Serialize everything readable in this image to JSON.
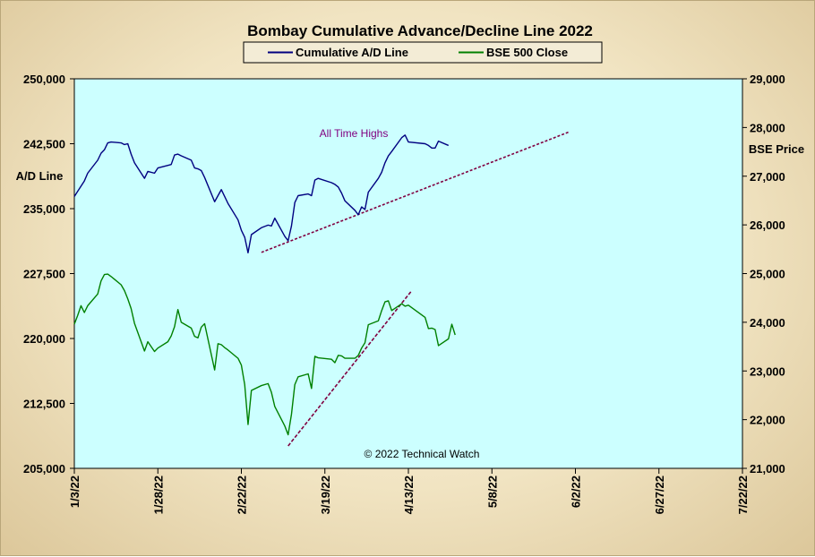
{
  "chart_data": {
    "type": "line",
    "title": "Bombay Cumulative Advance/Decline Line 2022",
    "left_axis": {
      "label": "A/D Line",
      "ylim": [
        205000,
        250000
      ],
      "ticks": [
        "205,000",
        "212,500",
        "220,000",
        "227,500",
        "235,000",
        "242,500",
        "250,000"
      ]
    },
    "right_axis": {
      "label": "BSE Price",
      "ylim": [
        21000,
        29000
      ],
      "ticks": [
        "21,000",
        "22,000",
        "23,000",
        "24,000",
        "25,000",
        "26,000",
        "27,000",
        "28,000",
        "29,000"
      ]
    },
    "x_ticks": [
      "1/3/22",
      "1/28/22",
      "2/22/22",
      "3/19/22",
      "4/13/22",
      "5/8/22",
      "6/2/22",
      "6/27/22",
      "7/22/22"
    ],
    "xlim": [
      "2022-01-03",
      "2022-07-22"
    ],
    "grid": false,
    "legend": "top-center",
    "plot_background": "#ccffff",
    "series": [
      {
        "name": "Cumulative A/D Line",
        "axis": "left",
        "color": "#000080",
        "points": [
          [
            "2022-01-03",
            236400
          ],
          [
            "2022-01-04",
            237000
          ],
          [
            "2022-01-05",
            237600
          ],
          [
            "2022-01-06",
            238200
          ],
          [
            "2022-01-07",
            239100
          ],
          [
            "2022-01-10",
            240600
          ],
          [
            "2022-01-11",
            241400
          ],
          [
            "2022-01-12",
            241800
          ],
          [
            "2022-01-13",
            242600
          ],
          [
            "2022-01-14",
            242700
          ],
          [
            "2022-01-17",
            242600
          ],
          [
            "2022-01-18",
            242400
          ],
          [
            "2022-01-19",
            242500
          ],
          [
            "2022-01-20",
            241300
          ],
          [
            "2022-01-21",
            240300
          ],
          [
            "2022-01-24",
            238500
          ],
          [
            "2022-01-25",
            239300
          ],
          [
            "2022-01-27",
            239100
          ],
          [
            "2022-01-28",
            239700
          ],
          [
            "2022-01-31",
            240000
          ],
          [
            "2022-02-01",
            240100
          ],
          [
            "2022-02-02",
            241200
          ],
          [
            "2022-02-03",
            241300
          ],
          [
            "2022-02-04",
            241100
          ],
          [
            "2022-02-07",
            240600
          ],
          [
            "2022-02-08",
            239700
          ],
          [
            "2022-02-09",
            239600
          ],
          [
            "2022-02-10",
            239400
          ],
          [
            "2022-02-11",
            238600
          ],
          [
            "2022-02-14",
            235800
          ],
          [
            "2022-02-15",
            236500
          ],
          [
            "2022-02-16",
            237200
          ],
          [
            "2022-02-17",
            236400
          ],
          [
            "2022-02-18",
            235600
          ],
          [
            "2022-02-21",
            233700
          ],
          [
            "2022-02-22",
            232500
          ],
          [
            "2022-02-23",
            231700
          ],
          [
            "2022-02-24",
            229900
          ],
          [
            "2022-02-25",
            232000
          ],
          [
            "2022-02-28",
            232800
          ],
          [
            "2022-03-02",
            233100
          ],
          [
            "2022-03-03",
            233000
          ],
          [
            "2022-03-04",
            233900
          ],
          [
            "2022-03-07",
            231800
          ],
          [
            "2022-03-08",
            231300
          ],
          [
            "2022-03-09",
            233000
          ],
          [
            "2022-03-10",
            235700
          ],
          [
            "2022-03-11",
            236500
          ],
          [
            "2022-03-14",
            236700
          ],
          [
            "2022-03-15",
            236500
          ],
          [
            "2022-03-16",
            238300
          ],
          [
            "2022-03-17",
            238500
          ],
          [
            "2022-03-21",
            238000
          ],
          [
            "2022-03-22",
            237800
          ],
          [
            "2022-03-23",
            237500
          ],
          [
            "2022-03-24",
            236800
          ],
          [
            "2022-03-25",
            235900
          ],
          [
            "2022-03-28",
            234800
          ],
          [
            "2022-03-29",
            234300
          ],
          [
            "2022-03-30",
            235200
          ],
          [
            "2022-03-31",
            234900
          ],
          [
            "2022-04-01",
            236900
          ],
          [
            "2022-04-04",
            238500
          ],
          [
            "2022-04-05",
            239200
          ],
          [
            "2022-04-06",
            240300
          ],
          [
            "2022-04-07",
            241100
          ],
          [
            "2022-04-08",
            241600
          ],
          [
            "2022-04-11",
            243200
          ],
          [
            "2022-04-12",
            243500
          ],
          [
            "2022-04-13",
            242700
          ],
          [
            "2022-04-18",
            242500
          ],
          [
            "2022-04-19",
            242300
          ],
          [
            "2022-04-20",
            242000
          ],
          [
            "2022-04-21",
            242000
          ],
          [
            "2022-04-22",
            242800
          ],
          [
            "2022-04-25",
            242300
          ]
        ]
      },
      {
        "name": "BSE 500 Close",
        "axis": "right",
        "color": "#008000",
        "points": [
          [
            "2022-01-03",
            23960
          ],
          [
            "2022-01-04",
            24140
          ],
          [
            "2022-01-05",
            24340
          ],
          [
            "2022-01-06",
            24200
          ],
          [
            "2022-01-07",
            24340
          ],
          [
            "2022-01-10",
            24580
          ],
          [
            "2022-01-11",
            24850
          ],
          [
            "2022-01-12",
            24980
          ],
          [
            "2022-01-13",
            24990
          ],
          [
            "2022-01-14",
            24940
          ],
          [
            "2022-01-17",
            24770
          ],
          [
            "2022-01-18",
            24650
          ],
          [
            "2022-01-19",
            24480
          ],
          [
            "2022-01-20",
            24280
          ],
          [
            "2022-01-21",
            23980
          ],
          [
            "2022-01-24",
            23410
          ],
          [
            "2022-01-25",
            23600
          ],
          [
            "2022-01-27",
            23400
          ],
          [
            "2022-01-28",
            23470
          ],
          [
            "2022-01-31",
            23600
          ],
          [
            "2022-02-01",
            23720
          ],
          [
            "2022-02-02",
            23910
          ],
          [
            "2022-02-03",
            24260
          ],
          [
            "2022-02-04",
            24000
          ],
          [
            "2022-02-07",
            23880
          ],
          [
            "2022-02-08",
            23710
          ],
          [
            "2022-02-09",
            23680
          ],
          [
            "2022-02-10",
            23900
          ],
          [
            "2022-02-11",
            23970
          ],
          [
            "2022-02-14",
            23020
          ],
          [
            "2022-02-15",
            23560
          ],
          [
            "2022-02-16",
            23540
          ],
          [
            "2022-02-17",
            23480
          ],
          [
            "2022-02-18",
            23430
          ],
          [
            "2022-02-21",
            23260
          ],
          [
            "2022-02-22",
            23120
          ],
          [
            "2022-02-23",
            22720
          ],
          [
            "2022-02-24",
            21900
          ],
          [
            "2022-02-25",
            22600
          ],
          [
            "2022-02-28",
            22700
          ],
          [
            "2022-03-02",
            22740
          ],
          [
            "2022-03-03",
            22560
          ],
          [
            "2022-03-04",
            22270
          ],
          [
            "2022-03-07",
            21870
          ],
          [
            "2022-03-08",
            21690
          ],
          [
            "2022-03-09",
            22110
          ],
          [
            "2022-03-10",
            22720
          ],
          [
            "2022-03-11",
            22880
          ],
          [
            "2022-03-14",
            22940
          ],
          [
            "2022-03-15",
            22640
          ],
          [
            "2022-03-16",
            23300
          ],
          [
            "2022-03-17",
            23270
          ],
          [
            "2022-03-21",
            23240
          ],
          [
            "2022-03-22",
            23170
          ],
          [
            "2022-03-23",
            23320
          ],
          [
            "2022-03-24",
            23310
          ],
          [
            "2022-03-25",
            23260
          ],
          [
            "2022-03-28",
            23260
          ],
          [
            "2022-03-29",
            23320
          ],
          [
            "2022-03-30",
            23470
          ],
          [
            "2022-03-31",
            23580
          ],
          [
            "2022-04-01",
            23950
          ],
          [
            "2022-04-04",
            24030
          ],
          [
            "2022-04-05",
            24240
          ],
          [
            "2022-04-06",
            24420
          ],
          [
            "2022-04-07",
            24440
          ],
          [
            "2022-04-08",
            24240
          ],
          [
            "2022-04-11",
            24380
          ],
          [
            "2022-04-12",
            24330
          ],
          [
            "2022-04-13",
            24350
          ],
          [
            "2022-04-18",
            24100
          ],
          [
            "2022-04-19",
            23870
          ],
          [
            "2022-04-20",
            23880
          ],
          [
            "2022-04-21",
            23850
          ],
          [
            "2022-04-22",
            23520
          ],
          [
            "2022-04-25",
            23660
          ],
          [
            "2022-04-26",
            23960
          ],
          [
            "2022-04-27",
            23740
          ]
        ]
      }
    ],
    "trendlines": [
      {
        "axis": "left",
        "color": "#800040",
        "style": "dotted",
        "from": [
          "2022-02-28",
          229950
        ],
        "to": [
          "2022-05-31",
          243850
        ]
      },
      {
        "axis": "right",
        "color": "#800040",
        "style": "dashed",
        "from": [
          "2022-03-08",
          21460
        ],
        "to": [
          "2022-04-14",
          24650
        ]
      }
    ],
    "annotations": [
      {
        "text": "All Time Highs",
        "color": "#800080"
      },
      {
        "text": "© 2022 Technical Watch",
        "color": "#000000"
      }
    ]
  }
}
